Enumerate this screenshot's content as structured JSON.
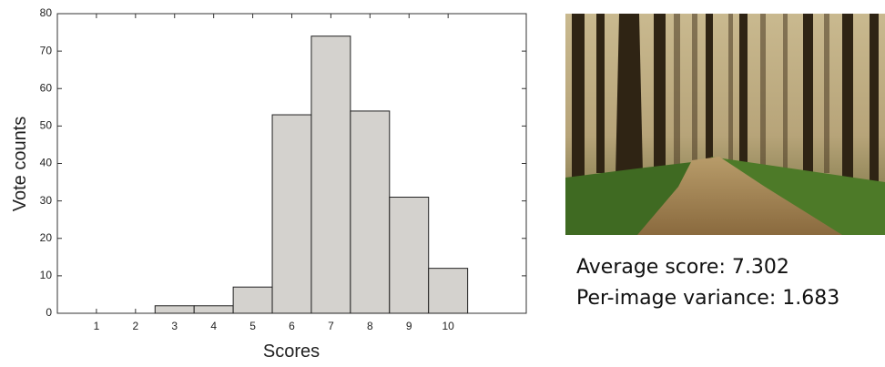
{
  "chart_data": {
    "type": "bar",
    "x": [
      1,
      2,
      3,
      4,
      5,
      6,
      7,
      8,
      9,
      10
    ],
    "values": [
      0,
      0,
      2,
      2,
      7,
      53,
      74,
      54,
      31,
      12
    ],
    "color": "#d4d2ce",
    "xlim": [
      0,
      12
    ],
    "xticks": [
      1,
      2,
      3,
      4,
      5,
      6,
      7,
      8,
      9,
      10
    ],
    "ylim": [
      0,
      80
    ],
    "yticks": [
      0,
      10,
      20,
      30,
      40,
      50,
      60,
      70,
      80
    ],
    "xlabel": "Scores",
    "ylabel": "Vote counts",
    "annotations": [
      "Average score: 7.302",
      "Per-image variance: 1.683"
    ]
  }
}
